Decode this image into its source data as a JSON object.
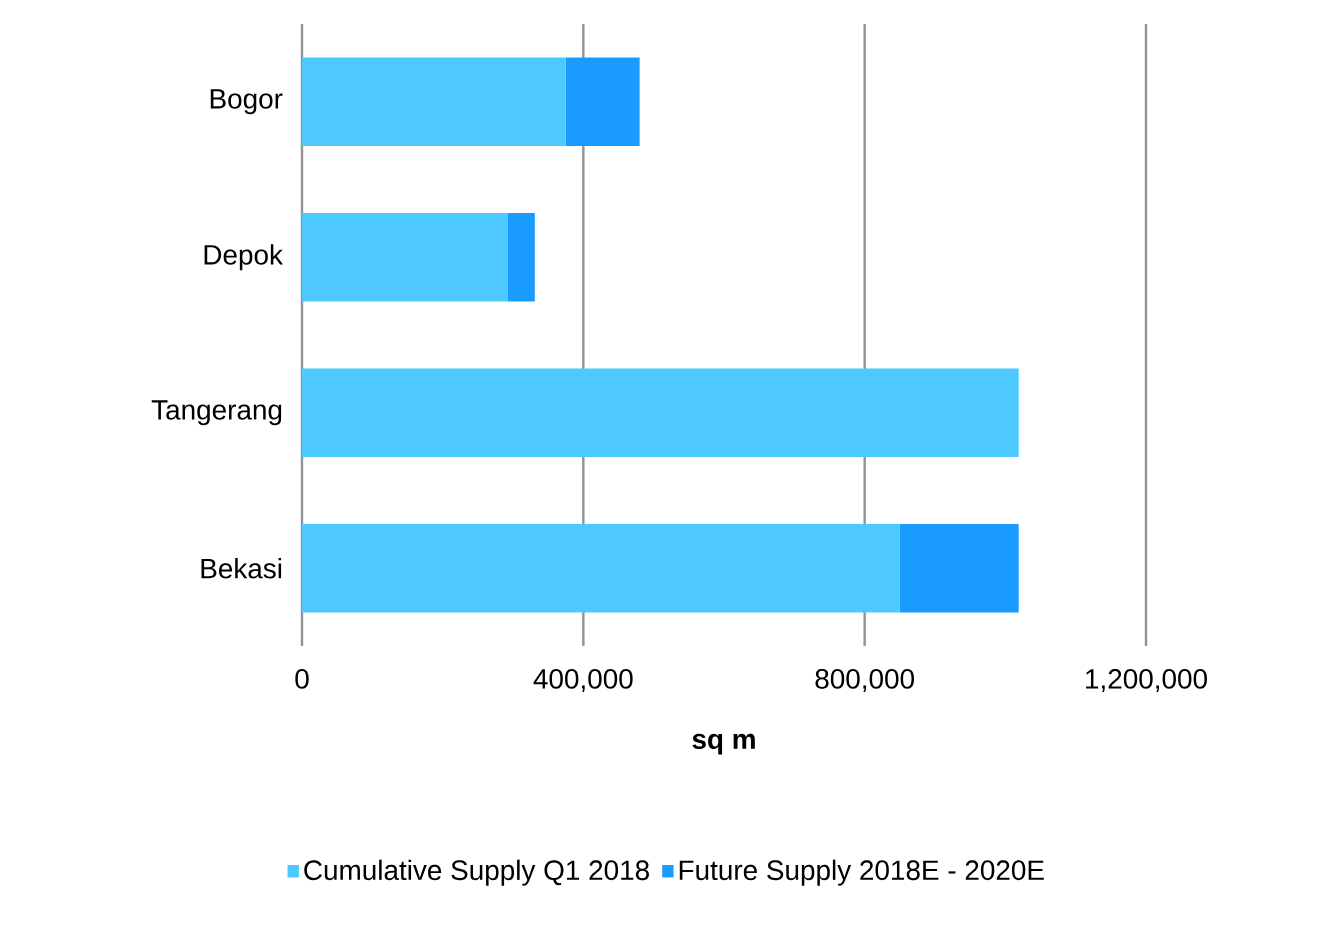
{
  "chart_data": {
    "type": "bar",
    "orientation": "horizontal",
    "stacked": true,
    "xlabel": "sq m",
    "categories": [
      "Bogor",
      "Depok",
      "Tangerang",
      "Bekasi"
    ],
    "series": [
      {
        "name": "Cumulative Supply Q1 2018",
        "color": "#4dc9ff",
        "values": [
          375000,
          292000,
          1019000,
          850000
        ]
      },
      {
        "name": "Future Supply 2018E - 2020E",
        "color": "#1a9bff",
        "values": [
          105000,
          39000,
          null,
          169000
        ]
      }
    ],
    "xlim": [
      0,
      1200000
    ],
    "xticks": [
      0,
      {
        "value": 400000,
        "label": "400,000"
      },
      {
        "value": 800000,
        "label": "800,000"
      },
      {
        "value": 1200000,
        "label": "1,200,000"
      }
    ],
    "grid": "x",
    "legend": "bottom"
  }
}
